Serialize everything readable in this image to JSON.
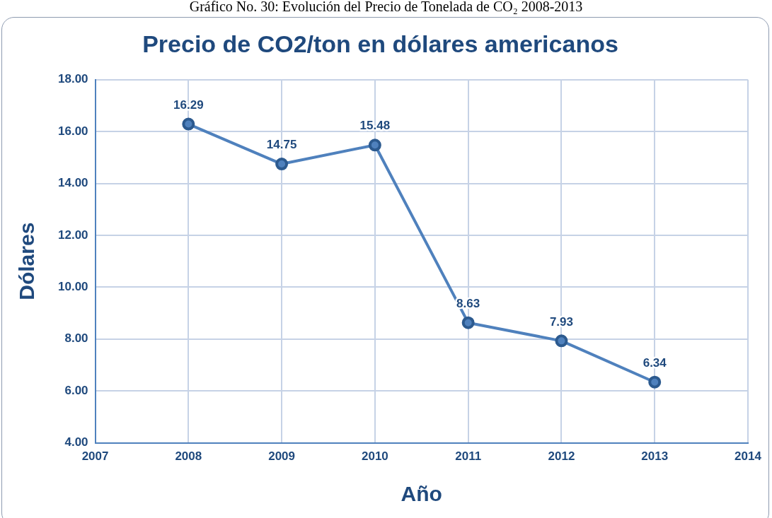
{
  "chart_data": {
    "type": "line",
    "title": "Precio de CO2/ton en dólares americanos",
    "subtitle": "Gráfico No. 30:  Evolución del Precio de Tonelada de CO₂ 2008-2013",
    "xlabel": "Año",
    "ylabel": "Dólares",
    "x": [
      2008,
      2009,
      2010,
      2011,
      2012,
      2013
    ],
    "series": [
      {
        "color": "#4f81bd",
        "values": [
          16.29,
          14.75,
          15.48,
          8.63,
          7.93,
          6.34
        ]
      }
    ],
    "xlim": [
      2007,
      2014
    ],
    "xticks": [
      2007,
      2008,
      2009,
      2010,
      2011,
      2012,
      2013,
      2014
    ],
    "ylim": [
      4,
      18
    ],
    "yticks": [
      {
        "value": 4,
        "label": "4.00"
      },
      {
        "value": 6,
        "label": "6.00"
      },
      {
        "value": 8,
        "label": "8.00"
      },
      {
        "value": 10,
        "label": "10.00"
      },
      {
        "value": 12,
        "label": "12.00"
      },
      {
        "value": 14,
        "label": "14.00"
      },
      {
        "value": 16,
        "label": "16.00"
      },
      {
        "value": 18,
        "label": "18.00"
      }
    ],
    "grid": true,
    "marker": "circle",
    "line_style": "solid",
    "data_labels": true,
    "legend": false
  }
}
